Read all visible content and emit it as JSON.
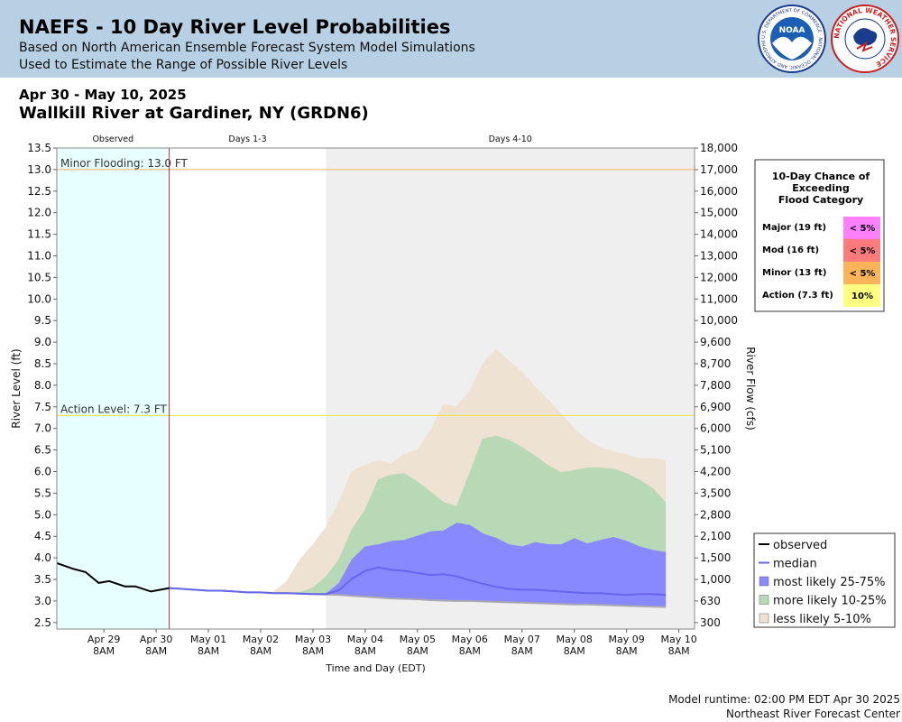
{
  "header": {
    "title": "NAEFS - 10 Day River Level Probabilities",
    "subtitle1": "Based on North American Ensemble Forecast System Model Simulations",
    "subtitle2": "Used to Estimate the Range of Possible River Levels",
    "logo1_text": "NOAA",
    "logo1_ring": "U.S. DEPARTMENT OF COMMERCE · NATIONAL OCEANIC AND ATMOSPHERIC ADMINISTRATION",
    "logo2_ring": "NATIONAL WEATHER SERVICE"
  },
  "date_range": "Apr 30 - May 10, 2025",
  "station": "Wallkill River at Gardiner, NY (GRDN6)",
  "footer": {
    "runtime": "Model runtime: 02:00 PM EDT Apr 30 2025",
    "center": "Northeast River Forecast Center"
  },
  "colors": {
    "observed_bg": "#e8ffff",
    "days410_bg": "#efefef",
    "band_5_10": "#eee2d3",
    "band_10_25": "#b8d9b5",
    "band_25_75": "#8888ff",
    "median": "#6666ee",
    "observed": "#000000",
    "minor_line": "#f0b060",
    "action_line": "#f2e23c"
  },
  "chart_data": {
    "type": "area",
    "title": "",
    "xlabel": "Time and Day (EDT)",
    "ylabel": "River Level (ft)",
    "y2label": "River Flow (cfs)",
    "ylim": [
      2.35,
      13.5
    ],
    "yticks": [
      "13.5",
      "13.0",
      "12.5",
      "12.0",
      "11.5",
      "11.0",
      "10.5",
      "10.0",
      "9.5",
      "9.0",
      "8.5",
      "8.0",
      "7.5",
      "7.0",
      "6.5",
      "6.0",
      "5.5",
      "5.0",
      "4.5",
      "4.0",
      "3.5",
      "3.0",
      "2.5"
    ],
    "y2ticks": [
      {
        "stage": 13.5,
        "label": "18,000"
      },
      {
        "stage": 13.0,
        "label": "17,000"
      },
      {
        "stage": 12.5,
        "label": "16,000"
      },
      {
        "stage": 12.0,
        "label": "15,000"
      },
      {
        "stage": 11.5,
        "label": "14,000"
      },
      {
        "stage": 11.0,
        "label": "13,000"
      },
      {
        "stage": 10.5,
        "label": "12,000"
      },
      {
        "stage": 10.0,
        "label": "11,000"
      },
      {
        "stage": 9.5,
        "label": "10,000"
      },
      {
        "stage": 9.0,
        "label": "9,600"
      },
      {
        "stage": 8.5,
        "label": "8,700"
      },
      {
        "stage": 8.0,
        "label": "7,800"
      },
      {
        "stage": 7.5,
        "label": "6,900"
      },
      {
        "stage": 7.0,
        "label": "6,000"
      },
      {
        "stage": 6.5,
        "label": "5,100"
      },
      {
        "stage": 6.0,
        "label": "4,200"
      },
      {
        "stage": 5.5,
        "label": "3,500"
      },
      {
        "stage": 5.0,
        "label": "2,800"
      },
      {
        "stage": 4.5,
        "label": "2,100"
      },
      {
        "stage": 4.0,
        "label": "1,500"
      },
      {
        "stage": 3.5,
        "label": "1,000"
      },
      {
        "stage": 3.0,
        "label": "630"
      },
      {
        "stage": 2.5,
        "label": "300"
      }
    ],
    "xlim": [
      -1.9,
      10.3
    ],
    "xticks": [
      {
        "day": -1.0,
        "label1": "Apr 29",
        "label2": "8AM"
      },
      {
        "day": 0.0,
        "label1": "Apr 30",
        "label2": "8AM"
      },
      {
        "day": 1.0,
        "label1": "May 01",
        "label2": "8AM"
      },
      {
        "day": 2.0,
        "label1": "May 02",
        "label2": "8AM"
      },
      {
        "day": 3.0,
        "label1": "May 03",
        "label2": "8AM"
      },
      {
        "day": 4.0,
        "label1": "May 04",
        "label2": "8AM"
      },
      {
        "day": 5.0,
        "label1": "May 05",
        "label2": "8AM"
      },
      {
        "day": 6.0,
        "label1": "May 06",
        "label2": "8AM"
      },
      {
        "day": 7.0,
        "label1": "May 07",
        "label2": "8AM"
      },
      {
        "day": 8.0,
        "label1": "May 08",
        "label2": "8AM"
      },
      {
        "day": 9.0,
        "label1": "May 09",
        "label2": "8AM"
      },
      {
        "day": 10.0,
        "label1": "May 10",
        "label2": "8AM"
      }
    ],
    "sections": [
      {
        "label": "Observed",
        "start": -1.9,
        "end": 0.25
      },
      {
        "label": "Days 1-3",
        "start": 0.25,
        "end": 3.25
      },
      {
        "label": "Days 4-10",
        "start": 3.25,
        "end": 10.3
      }
    ],
    "thresholds": [
      {
        "label": "Minor Flooding: 13.0 FT",
        "value": 13.0
      },
      {
        "label": "Action Level: 7.3 FT",
        "value": 7.3
      }
    ],
    "forecast_start": 0.25,
    "x_days": [
      0.25,
      0.5,
      0.75,
      1.0,
      1.25,
      1.5,
      1.75,
      2.0,
      2.25,
      2.5,
      2.75,
      3.0,
      3.25,
      3.5,
      3.75,
      4.0,
      4.25,
      4.5,
      4.75,
      5.0,
      5.25,
      5.5,
      5.75,
      6.0,
      6.25,
      6.5,
      6.75,
      7.0,
      7.25,
      7.5,
      7.75,
      8.0,
      8.25,
      8.5,
      8.75,
      9.0,
      9.25,
      9.5,
      9.75
    ],
    "series": [
      {
        "name": "observed",
        "x": [
          -1.9,
          -1.6,
          -1.35,
          -1.1,
          -0.9,
          -0.6,
          -0.4,
          -0.1,
          0.25
        ],
        "values": [
          3.88,
          3.75,
          3.67,
          3.42,
          3.46,
          3.34,
          3.34,
          3.22,
          3.3
        ]
      },
      {
        "name": "median",
        "values": [
          3.3,
          3.28,
          3.26,
          3.24,
          3.24,
          3.22,
          3.2,
          3.2,
          3.18,
          3.18,
          3.17,
          3.16,
          3.16,
          3.25,
          3.52,
          3.7,
          3.78,
          3.72,
          3.7,
          3.65,
          3.6,
          3.62,
          3.57,
          3.48,
          3.4,
          3.33,
          3.28,
          3.26,
          3.26,
          3.24,
          3.22,
          3.2,
          3.18,
          3.18,
          3.16,
          3.14,
          3.16,
          3.16,
          3.14
        ]
      },
      {
        "name": "most likely 25-75%",
        "upper": [
          3.3,
          3.28,
          3.26,
          3.24,
          3.24,
          3.22,
          3.2,
          3.2,
          3.18,
          3.18,
          3.17,
          3.16,
          3.16,
          3.4,
          3.95,
          4.25,
          4.3,
          4.38,
          4.4,
          4.5,
          4.6,
          4.62,
          4.8,
          4.75,
          4.55,
          4.45,
          4.3,
          4.25,
          4.35,
          4.3,
          4.3,
          4.44,
          4.32,
          4.4,
          4.47,
          4.38,
          4.25,
          4.17,
          4.12
        ],
        "lower": [
          3.3,
          3.28,
          3.26,
          3.24,
          3.24,
          3.22,
          3.2,
          3.2,
          3.18,
          3.18,
          3.17,
          3.16,
          3.15,
          3.14,
          3.12,
          3.1,
          3.08,
          3.06,
          3.05,
          3.04,
          3.02,
          3.01,
          3.0,
          3.0,
          2.99,
          2.98,
          2.97,
          2.96,
          2.95,
          2.94,
          2.93,
          2.92,
          2.92,
          2.91,
          2.9,
          2.89,
          2.88,
          2.87,
          2.86
        ]
      },
      {
        "name": "more likely 10-25%",
        "upper": [
          3.3,
          3.28,
          3.26,
          3.24,
          3.24,
          3.22,
          3.2,
          3.2,
          3.18,
          3.18,
          3.19,
          3.3,
          3.55,
          3.95,
          4.65,
          5.1,
          5.8,
          5.92,
          5.95,
          5.75,
          5.52,
          5.28,
          5.18,
          5.95,
          6.75,
          6.82,
          6.72,
          6.55,
          6.35,
          6.13,
          5.97,
          6.02,
          6.08,
          6.08,
          6.05,
          5.95,
          5.8,
          5.6,
          5.27
        ],
        "lower": [
          3.3,
          3.28,
          3.26,
          3.24,
          3.24,
          3.22,
          3.2,
          3.2,
          3.18,
          3.18,
          3.17,
          3.16,
          3.15,
          3.14,
          3.12,
          3.1,
          3.08,
          3.06,
          3.05,
          3.04,
          3.02,
          3.01,
          3.0,
          3.0,
          2.99,
          2.98,
          2.97,
          2.96,
          2.95,
          2.94,
          2.93,
          2.92,
          2.92,
          2.91,
          2.9,
          2.89,
          2.88,
          2.87,
          2.86
        ]
      },
      {
        "name": "less likely 5-10%",
        "upper": [
          3.3,
          3.28,
          3.26,
          3.24,
          3.24,
          3.22,
          3.2,
          3.2,
          3.2,
          3.45,
          3.95,
          4.3,
          4.7,
          5.3,
          6.0,
          6.15,
          6.25,
          6.18,
          6.4,
          6.5,
          6.95,
          7.55,
          7.5,
          7.85,
          8.5,
          8.82,
          8.55,
          8.3,
          7.95,
          7.65,
          7.32,
          6.98,
          6.72,
          6.55,
          6.46,
          6.38,
          6.3,
          6.3,
          6.25
        ],
        "lower": [
          3.3,
          3.28,
          3.26,
          3.24,
          3.24,
          3.22,
          3.2,
          3.2,
          3.18,
          3.18,
          3.17,
          3.16,
          3.15,
          3.14,
          3.12,
          3.1,
          3.08,
          3.06,
          3.05,
          3.04,
          3.02,
          3.01,
          3.0,
          3.0,
          2.99,
          2.98,
          2.97,
          2.96,
          2.95,
          2.94,
          2.93,
          2.92,
          2.92,
          2.91,
          2.9,
          2.89,
          2.88,
          2.87,
          2.86
        ]
      }
    ],
    "legend": {
      "placement": "bottom-right",
      "entries": [
        {
          "label": "observed",
          "kind": "line",
          "color": "#000000"
        },
        {
          "label": "median",
          "kind": "line",
          "color": "#6666ee"
        },
        {
          "label": "most likely 25-75%",
          "kind": "box",
          "color": "#8888ff"
        },
        {
          "label": "more likely 10-25%",
          "kind": "box",
          "color": "#b8d9b5"
        },
        {
          "label": "less likely 5-10%",
          "kind": "box",
          "color": "#eee2d3"
        }
      ]
    },
    "chance_table": {
      "title1": "10-Day Chance of",
      "title2": "Exceeding",
      "title3": "Flood Category",
      "rows": [
        {
          "label": "Major (19 ft)",
          "value": "< 5%",
          "color": "#ff80ff"
        },
        {
          "label": "Mod (16 ft)",
          "value": "< 5%",
          "color": "#ff7b7b"
        },
        {
          "label": "Minor (13 ft)",
          "value": "< 5%",
          "color": "#ffb45a"
        },
        {
          "label": "Action (7.3 ft)",
          "value": "10%",
          "color": "#ffff80"
        }
      ]
    }
  }
}
